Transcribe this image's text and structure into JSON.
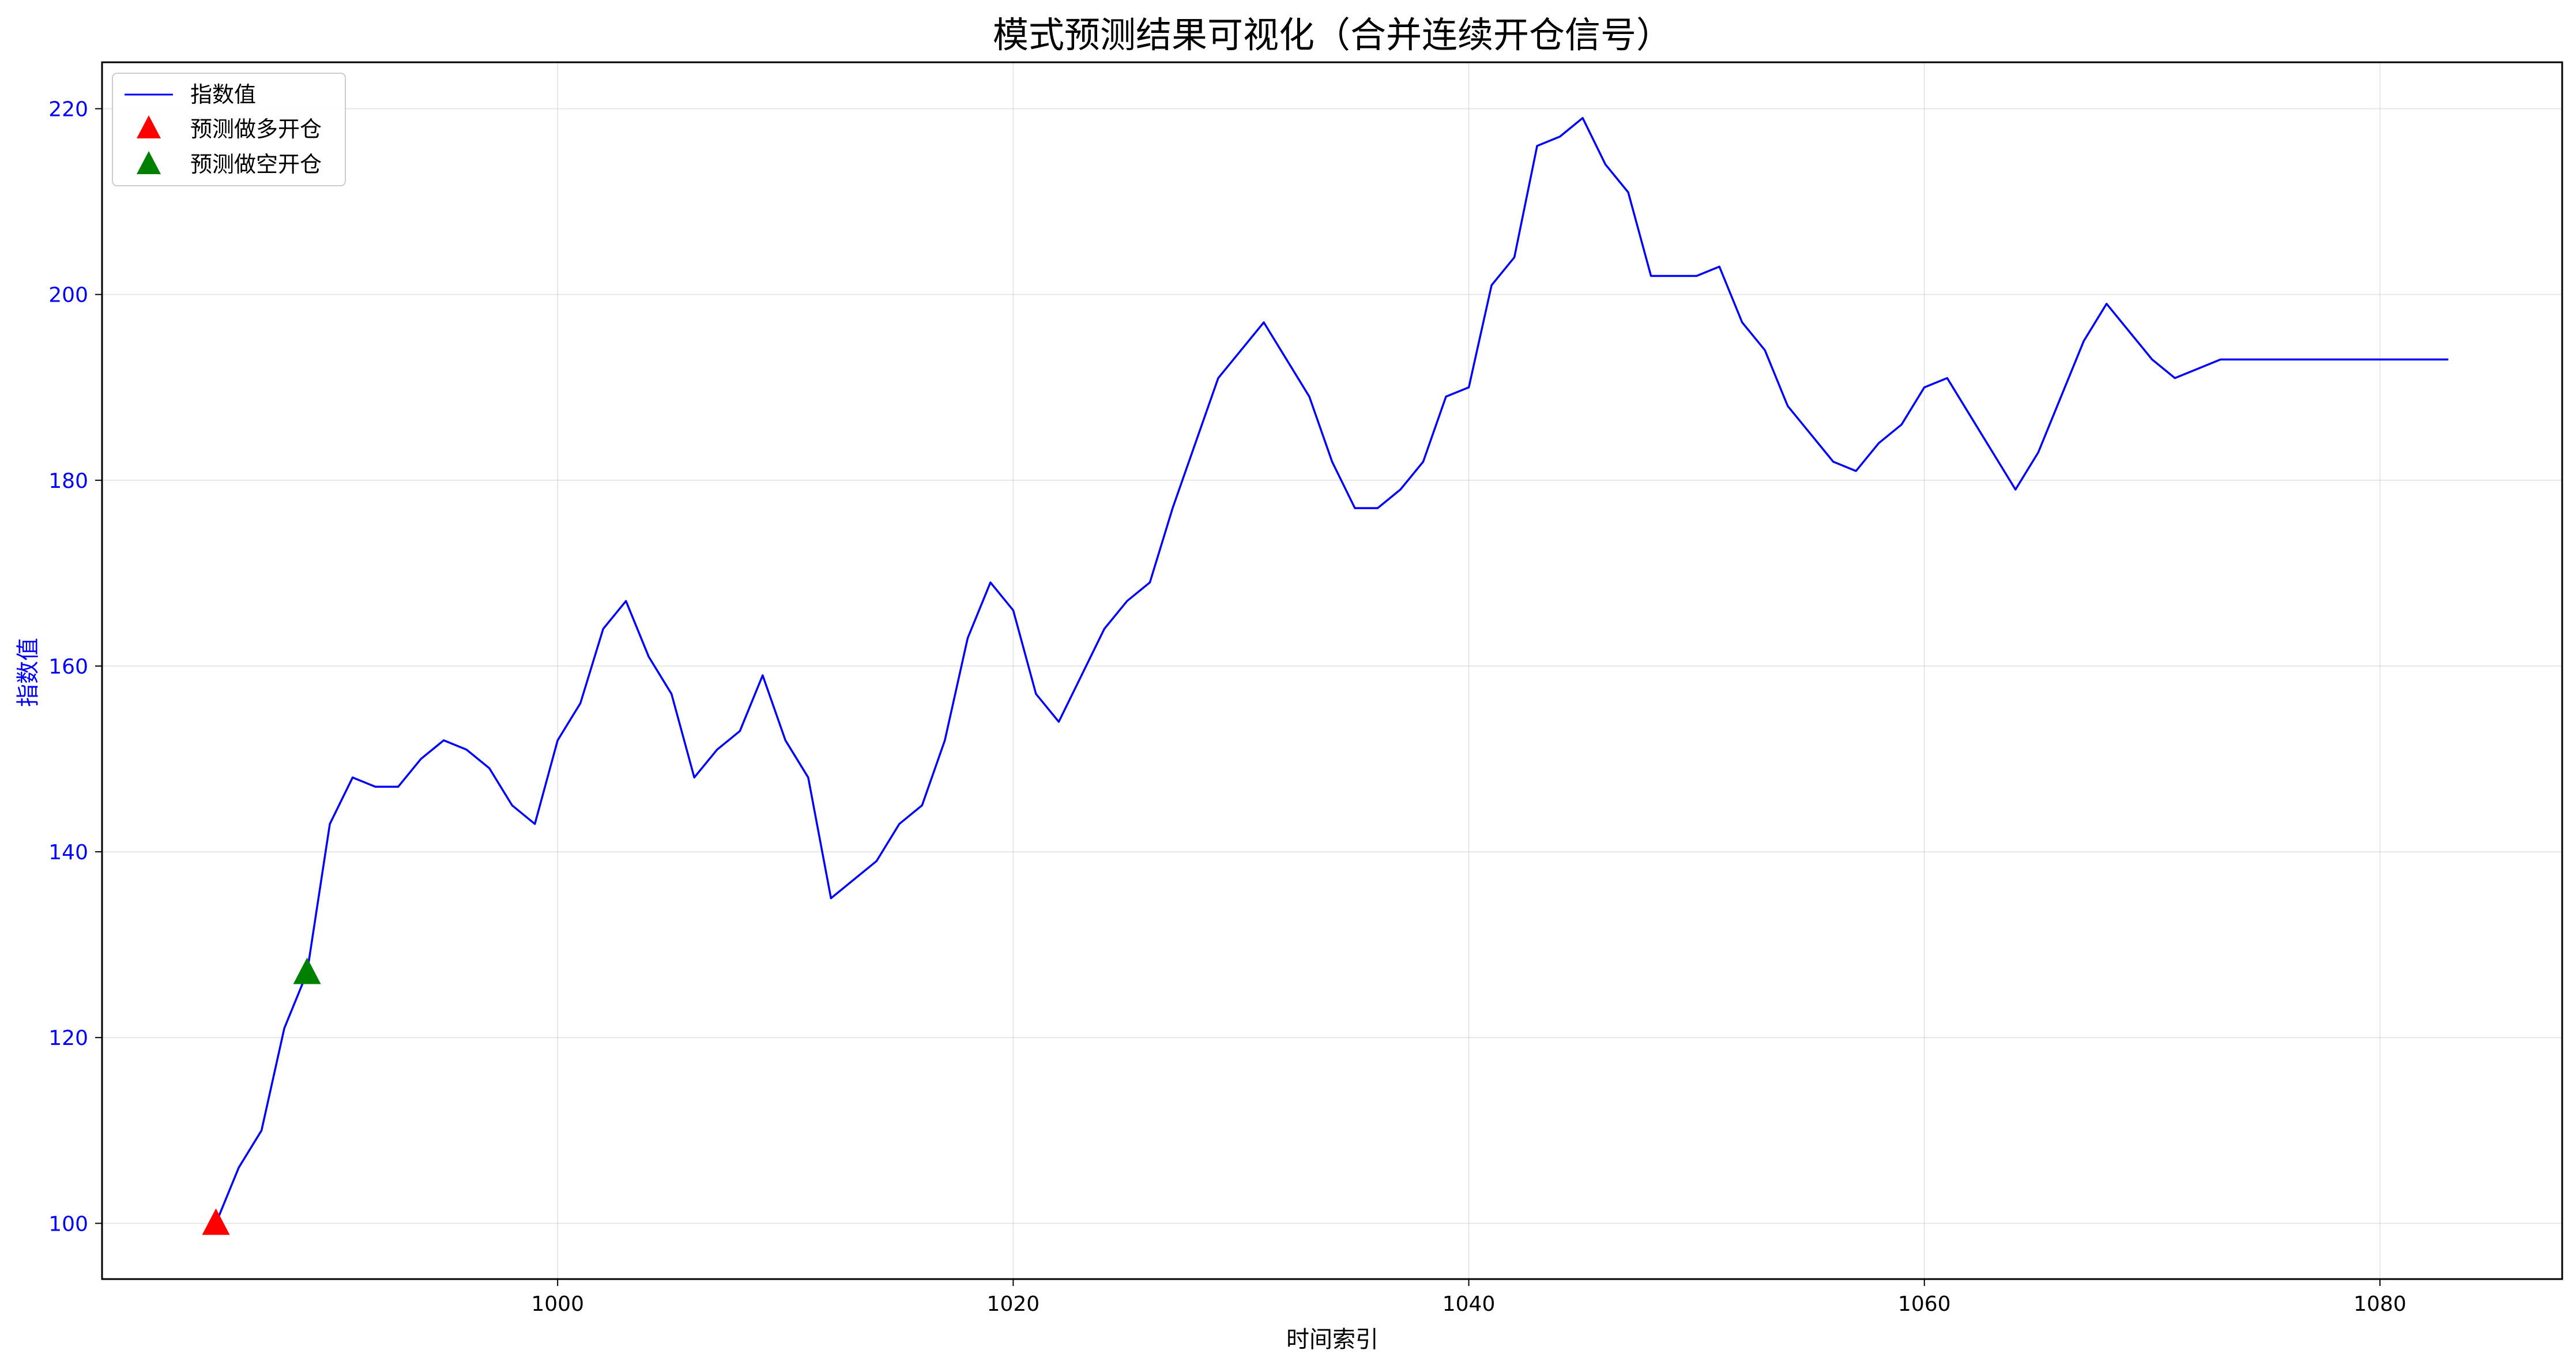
{
  "chart_data": {
    "type": "line",
    "title": "模式预测结果可视化（合并连续开仓信号）",
    "xlabel": "时间索引",
    "ylabel": "指数值",
    "xlim": [
      980,
      1088
    ],
    "ylim": [
      94,
      225
    ],
    "xticks": [
      1000,
      1020,
      1040,
      1060,
      1080
    ],
    "yticks": [
      100,
      120,
      140,
      160,
      180,
      200,
      220
    ],
    "grid": true,
    "legend_position": "top-left",
    "colors": {
      "line": "#0000ff",
      "long": "#ff0000",
      "short": "#008000",
      "yaxis": "#0000ff"
    },
    "series": [
      {
        "name": "指数值",
        "x": [
          985,
          986,
          987,
          988,
          989,
          990,
          991,
          992,
          993,
          994,
          995,
          996,
          997,
          998,
          999,
          1000,
          1001,
          1002,
          1003,
          1004,
          1005,
          1006,
          1007,
          1008,
          1009,
          1010,
          1011,
          1012,
          1013,
          1014,
          1015,
          1016,
          1017,
          1018,
          1019,
          1020,
          1021,
          1022,
          1023,
          1024,
          1025,
          1026,
          1027,
          1028,
          1029,
          1030,
          1031,
          1032,
          1033,
          1034,
          1035,
          1036,
          1037,
          1038,
          1039,
          1040,
          1041,
          1042,
          1043,
          1044,
          1045,
          1046,
          1047,
          1048,
          1049,
          1050,
          1051,
          1052,
          1053,
          1054,
          1055,
          1056,
          1057,
          1058,
          1059,
          1060,
          1061,
          1062,
          1063,
          1064,
          1065,
          1066,
          1067,
          1068,
          1069,
          1070,
          1071,
          1072,
          1073,
          1074,
          1075,
          1076,
          1077,
          1078,
          1079,
          1080,
          1081,
          1082,
          1083
        ],
        "y": [
          100,
          106,
          110,
          121,
          127,
          143,
          148,
          147,
          147,
          150,
          152,
          151,
          149,
          145,
          143,
          152,
          156,
          164,
          167,
          161,
          157,
          148,
          151,
          153,
          159,
          152,
          148,
          135,
          137,
          139,
          143,
          145,
          152,
          163,
          169,
          166,
          157,
          154,
          159,
          164,
          167,
          169,
          177,
          184,
          191,
          194,
          197,
          193,
          189,
          182,
          177,
          177,
          179,
          182,
          189,
          190,
          201,
          204,
          216,
          217,
          219,
          214,
          211,
          202,
          202,
          202,
          203,
          197,
          194,
          188,
          185,
          182,
          181,
          184,
          186,
          190,
          191,
          187,
          183,
          179,
          183,
          189,
          195,
          199,
          196,
          193,
          191,
          192,
          193,
          193,
          193,
          193,
          193,
          193,
          193,
          193,
          193,
          193,
          193
        ]
      }
    ],
    "markers": [
      {
        "name": "预测做多开仓",
        "x": [
          985
        ],
        "y": [
          100
        ]
      },
      {
        "name": "预测做空开仓",
        "x": [
          989
        ],
        "y": [
          127
        ]
      }
    ]
  }
}
